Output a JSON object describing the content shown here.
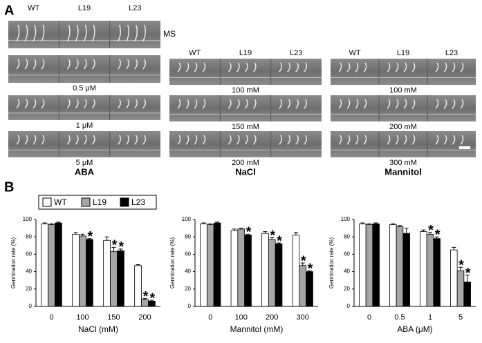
{
  "figure": {
    "panel_a": "A",
    "panel_b": "B",
    "groups": [
      {
        "headers": [
          "WT",
          "L19",
          "L23"
        ],
        "rows": [
          "MS",
          "0.5 μM",
          "1 μM",
          "5 μM"
        ],
        "title": "ABA"
      },
      {
        "headers": [
          "WT",
          "L19",
          "L23"
        ],
        "rows": [
          "100 mM",
          "150 mM",
          "200 mM"
        ],
        "title": "NaCl"
      },
      {
        "headers": [
          "WT",
          "L19",
          "L23"
        ],
        "rows": [
          "100 mM",
          "200 mM",
          "300 mM"
        ],
        "title": "Mannitol"
      }
    ]
  },
  "chart_data": [
    {
      "type": "bar",
      "xlabel": "NaCl (mM)",
      "ylabel": "Germination rate (%)",
      "categories": [
        "0",
        "100",
        "150",
        "200"
      ],
      "ylim": [
        0,
        100
      ],
      "yticks": [
        0,
        20,
        40,
        60,
        80,
        100
      ],
      "series": [
        {
          "name": "WT",
          "color": "#ffffff",
          "values": [
            95,
            83,
            76,
            47
          ],
          "errors": [
            1,
            2,
            4,
            1
          ],
          "significance": [
            null,
            null,
            null,
            null
          ]
        },
        {
          "name": "L19",
          "color": "#a6a6a6",
          "values": [
            94,
            81,
            63,
            8
          ],
          "errors": [
            1,
            2,
            5,
            1
          ],
          "significance": [
            null,
            null,
            "*",
            "*"
          ]
        },
        {
          "name": "L23",
          "color": "#000000",
          "values": [
            96,
            77,
            64,
            6
          ],
          "errors": [
            1,
            1,
            2,
            1
          ],
          "significance": [
            null,
            "*",
            "*",
            "*"
          ]
        }
      ]
    },
    {
      "type": "bar",
      "xlabel": "Mannitol (mM)",
      "ylabel": "Germination rate (%)",
      "categories": [
        "0",
        "100",
        "200",
        "300"
      ],
      "ylim": [
        0,
        100
      ],
      "yticks": [
        0,
        20,
        40,
        60,
        80,
        100
      ],
      "series": [
        {
          "color": "#ffffff",
          "values": [
            95,
            87,
            84,
            82
          ],
          "errors": [
            1,
            2,
            2,
            3
          ],
          "significance": [
            null,
            null,
            null,
            null
          ]
        },
        {
          "color": "#a6a6a6",
          "values": [
            94,
            89,
            77,
            47
          ],
          "errors": [
            1,
            1,
            2,
            3
          ],
          "significance": [
            null,
            null,
            "*",
            "*"
          ]
        },
        {
          "color": "#000000",
          "values": [
            96,
            82,
            72,
            40
          ],
          "errors": [
            1,
            1,
            1,
            1
          ],
          "significance": [
            null,
            "*",
            "*",
            "*"
          ]
        }
      ]
    },
    {
      "type": "bar",
      "xlabel": "ABA (μM)",
      "ylabel": "Germination rate (%)",
      "categories": [
        "0",
        "0.5",
        "1",
        "5"
      ],
      "ylim": [
        0,
        100
      ],
      "yticks": [
        0,
        20,
        40,
        60,
        80,
        100
      ],
      "series": [
        {
          "color": "#ffffff",
          "values": [
            95,
            94,
            86,
            65
          ],
          "errors": [
            1,
            1,
            2,
            3
          ],
          "significance": [
            null,
            null,
            null,
            null
          ]
        },
        {
          "color": "#a6a6a6",
          "values": [
            94,
            92,
            83,
            41
          ],
          "errors": [
            1,
            1,
            2,
            4
          ],
          "significance": [
            null,
            null,
            "*",
            "*"
          ]
        },
        {
          "color": "#000000",
          "values": [
            95,
            84,
            78,
            28
          ],
          "errors": [
            1,
            6,
            2,
            8
          ],
          "significance": [
            null,
            null,
            "*",
            "*"
          ]
        }
      ]
    }
  ]
}
